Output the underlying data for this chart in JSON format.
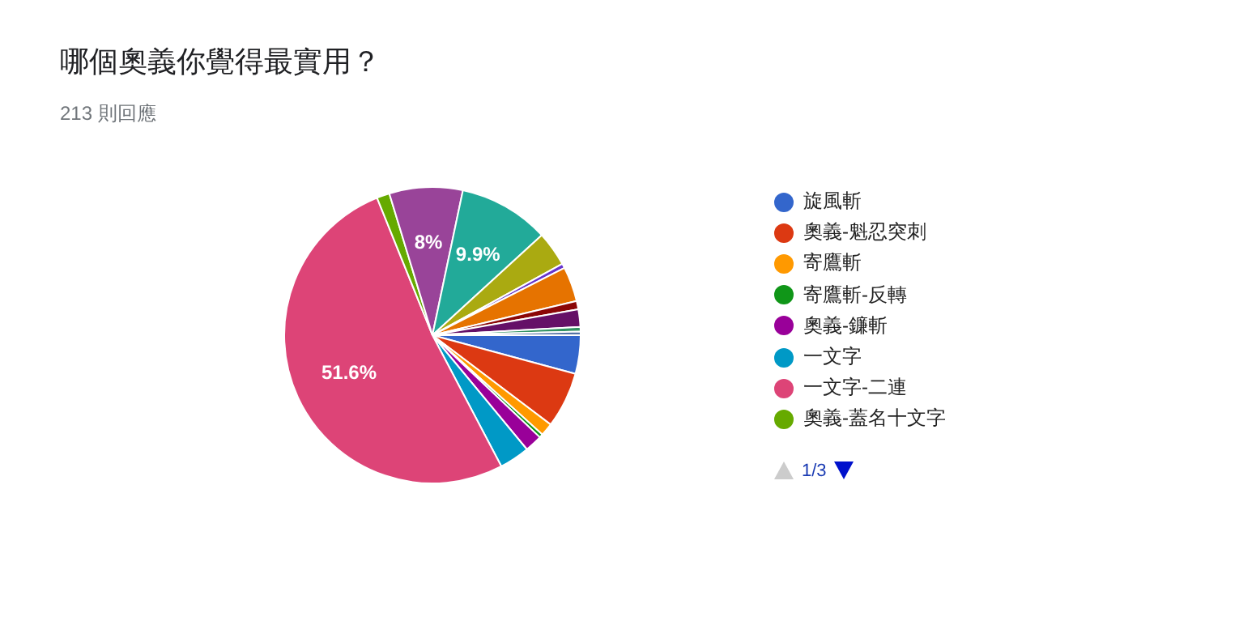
{
  "chart_data": {
    "type": "pie",
    "title": "哪個奧義你覺得最實用？",
    "subtitle": "213 則回應",
    "categories": [
      "旋風斬",
      "奧義-魁忍突刺",
      "寄鷹斬",
      "寄鷹斬-反轉",
      "奧義-鐮斬",
      "一文字",
      "一文字-二連",
      "奧義-蓋名十文字",
      null,
      null,
      null,
      null,
      null,
      null,
      null,
      null,
      null
    ],
    "values": [
      4.2,
      6.1,
      1.4,
      0.4,
      1.9,
      3.3,
      51.6,
      1.4,
      8,
      9.9,
      3.8,
      0.5,
      3.8,
      0.9,
      1.9,
      0.5,
      0.4
    ],
    "colors": [
      "#3366cc",
      "#dc3912",
      "#ff9900",
      "#109618",
      "#990099",
      "#0099c6",
      "#dd4477",
      "#66aa00",
      "#994499",
      "#22aa99",
      "#aaaa11",
      "#6633cc",
      "#e67300",
      "#8b0707",
      "#651067",
      "#329262",
      "#5574a6"
    ],
    "value_labels": [
      null,
      null,
      null,
      null,
      null,
      null,
      "51.6%",
      null,
      "8%",
      "9.9%",
      null,
      null,
      null,
      null,
      null,
      null,
      null
    ],
    "legend": "right",
    "annotations": [
      "1/3"
    ]
  }
}
